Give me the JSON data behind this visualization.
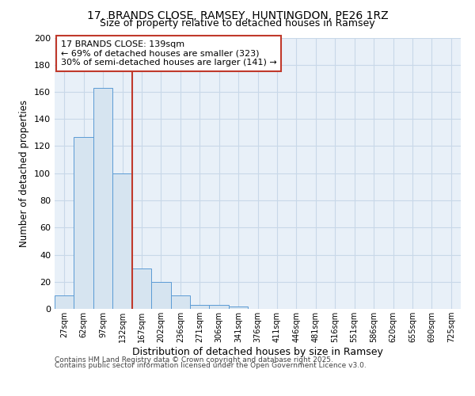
{
  "title1": "17, BRANDS CLOSE, RAMSEY, HUNTINGDON, PE26 1RZ",
  "title2": "Size of property relative to detached houses in Ramsey",
  "xlabel": "Distribution of detached houses by size in Ramsey",
  "ylabel": "Number of detached properties",
  "bar_labels": [
    "27sqm",
    "62sqm",
    "97sqm",
    "132sqm",
    "167sqm",
    "202sqm",
    "236sqm",
    "271sqm",
    "306sqm",
    "341sqm",
    "376sqm",
    "411sqm",
    "446sqm",
    "481sqm",
    "516sqm",
    "551sqm",
    "586sqm",
    "620sqm",
    "655sqm",
    "690sqm",
    "725sqm"
  ],
  "bar_values": [
    10,
    127,
    163,
    100,
    30,
    20,
    10,
    3,
    3,
    2,
    0,
    0,
    0,
    0,
    0,
    0,
    0,
    0,
    0,
    0,
    0
  ],
  "bar_color": "#d6e4f0",
  "bar_edge_color": "#5b9bd5",
  "grid_color": "#c8d8e8",
  "vline_color": "#c0392b",
  "vline_pos": 3.5,
  "annotation_text": "17 BRANDS CLOSE: 139sqm\n← 69% of detached houses are smaller (323)\n30% of semi-detached houses are larger (141) →",
  "annotation_box_color": "#c0392b",
  "ylim": [
    0,
    200
  ],
  "yticks": [
    0,
    20,
    40,
    60,
    80,
    100,
    120,
    140,
    160,
    180,
    200
  ],
  "footnote1": "Contains HM Land Registry data © Crown copyright and database right 2025.",
  "footnote2": "Contains public sector information licensed under the Open Government Licence v3.0.",
  "bg_color": "#e8f0f8",
  "fig_bg": "#ffffff"
}
